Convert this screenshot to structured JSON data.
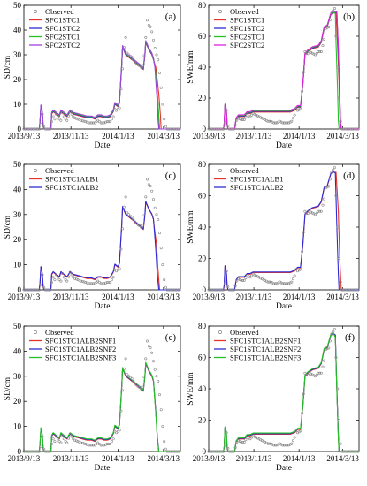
{
  "figure": {
    "x_ticks": [
      "2013/9/13",
      "2013/11/13",
      "2014/1/13",
      "2014/3/13"
    ],
    "x_tick_days": [
      0,
      61,
      122,
      181
    ],
    "x_range_days": [
      0,
      203
    ],
    "xlabel": "Date"
  },
  "chart_data": [
    {
      "type": "line",
      "panel": "(a)",
      "ylabel": "SD/cm",
      "ylim": [
        0,
        50
      ],
      "yticks": [
        0,
        10,
        20,
        30,
        40,
        50
      ],
      "legend_position": "top-left",
      "series": [
        {
          "name": "Observed",
          "color": "#888888",
          "marker": "circle"
        },
        {
          "name": "SFC1STC1",
          "color": "#e8332a"
        },
        {
          "name": "SFC1STC2",
          "color": "#2b2bd6"
        },
        {
          "name": "SFC2STC1",
          "color": "#22c322"
        },
        {
          "name": "SFC2STC2",
          "color": "#a040e0"
        }
      ]
    },
    {
      "type": "line",
      "panel": "(b)",
      "ylabel": "SWE/mm",
      "ylim": [
        0,
        80
      ],
      "yticks": [
        0,
        20,
        40,
        60,
        80
      ],
      "legend_position": "top-left",
      "series": [
        {
          "name": "Observed",
          "color": "#888888",
          "marker": "circle"
        },
        {
          "name": "SFC1STC1",
          "color": "#e8332a"
        },
        {
          "name": "SFC1STC2",
          "color": "#2b2bd6"
        },
        {
          "name": "SFC2STC1",
          "color": "#22c322"
        },
        {
          "name": "SFC2STC2",
          "color": "#e020e0"
        }
      ]
    },
    {
      "type": "line",
      "panel": "(c)",
      "ylabel": "SD/cm",
      "ylim": [
        0,
        50
      ],
      "yticks": [
        0,
        10,
        20,
        30,
        40,
        50
      ],
      "legend_position": "top-left",
      "series": [
        {
          "name": "Observed",
          "color": "#888888",
          "marker": "circle"
        },
        {
          "name": "SFC1STC1ALB1",
          "color": "#e8332a"
        },
        {
          "name": "SFC1STC1ALB2",
          "color": "#2b2bd6"
        }
      ]
    },
    {
      "type": "line",
      "panel": "(d)",
      "ylabel": "SWE/mm",
      "ylim": [
        0,
        80
      ],
      "yticks": [
        0,
        20,
        40,
        60,
        80
      ],
      "legend_position": "top-left",
      "series": [
        {
          "name": "Observed",
          "color": "#888888",
          "marker": "circle"
        },
        {
          "name": "SFC1STC1ALB1",
          "color": "#e8332a"
        },
        {
          "name": "SFC1STC1ALB2",
          "color": "#2b2bd6"
        }
      ]
    },
    {
      "type": "line",
      "panel": "(e)",
      "ylabel": "SD/cm",
      "ylim": [
        0,
        50
      ],
      "yticks": [
        0,
        10,
        20,
        30,
        40,
        50
      ],
      "legend_position": "top-left",
      "series": [
        {
          "name": "Observed",
          "color": "#888888",
          "marker": "circle"
        },
        {
          "name": "SFC1STC1ALB2SNF1",
          "color": "#e8332a"
        },
        {
          "name": "SFC1STC1ALB2SNF2",
          "color": "#2b2bd6"
        },
        {
          "name": "SFC1STC1ALB2SNF3",
          "color": "#22c322"
        }
      ]
    },
    {
      "type": "line",
      "panel": "(f)",
      "ylabel": "SWE/mm",
      "ylim": [
        0,
        80
      ],
      "yticks": [
        0,
        20,
        40,
        60,
        80
      ],
      "legend_position": "top-left",
      "series": [
        {
          "name": "Observed",
          "color": "#888888",
          "marker": "circle"
        },
        {
          "name": "SFC1STC1ALB2SNF1",
          "color": "#e8332a"
        },
        {
          "name": "SFC1STC1ALB2SNF2",
          "color": "#2b2bd6"
        },
        {
          "name": "SFC1STC1ALB2SNF3",
          "color": "#22c322"
        }
      ]
    }
  ],
  "curves": {
    "obs_sd": [
      [
        0,
        0
      ],
      [
        20,
        0
      ],
      [
        22,
        2
      ],
      [
        23,
        7
      ],
      [
        24,
        6
      ],
      [
        25,
        6
      ],
      [
        26,
        1
      ],
      [
        28,
        0
      ],
      [
        35,
        0
      ],
      [
        36,
        3
      ],
      [
        38,
        5
      ],
      [
        40,
        4
      ],
      [
        42,
        6
      ],
      [
        44,
        5
      ],
      [
        46,
        4
      ],
      [
        48,
        3.5
      ],
      [
        50,
        6.5
      ],
      [
        52,
        5
      ],
      [
        54,
        4
      ],
      [
        56,
        3.5
      ],
      [
        60,
        7
      ],
      [
        62,
        6
      ],
      [
        64,
        5
      ],
      [
        66,
        4.5
      ],
      [
        70,
        4
      ],
      [
        74,
        3.5
      ],
      [
        80,
        3
      ],
      [
        84,
        2.5
      ],
      [
        88,
        2.5
      ],
      [
        92,
        2.5
      ],
      [
        96,
        3.5
      ],
      [
        100,
        2.5
      ],
      [
        104,
        2.5
      ],
      [
        108,
        3
      ],
      [
        112,
        3
      ],
      [
        116,
        5
      ],
      [
        118,
        8
      ],
      [
        120,
        7.5
      ],
      [
        122,
        8
      ],
      [
        124,
        8.5
      ],
      [
        127,
        20
      ],
      [
        130,
        33
      ],
      [
        131,
        43
      ],
      [
        133,
        31
      ],
      [
        136,
        30
      ],
      [
        140,
        29
      ],
      [
        144,
        27
      ],
      [
        148,
        26
      ],
      [
        152,
        25
      ],
      [
        155,
        26
      ],
      [
        158,
        37
      ],
      [
        160,
        44
      ],
      [
        162,
        42
      ],
      [
        165,
        41
      ],
      [
        168,
        36
      ],
      [
        171,
        31
      ],
      [
        174,
        28
      ],
      [
        177,
        20
      ],
      [
        180,
        10
      ],
      [
        182,
        4
      ],
      [
        183,
        2
      ],
      [
        185,
        0
      ],
      [
        203,
        0
      ]
    ],
    "obs_swe": [
      [
        0,
        0
      ],
      [
        20,
        0
      ],
      [
        22,
        4
      ],
      [
        23,
        13
      ],
      [
        24,
        12
      ],
      [
        26,
        2
      ],
      [
        28,
        0
      ],
      [
        35,
        0
      ],
      [
        37,
        5
      ],
      [
        40,
        7
      ],
      [
        44,
        6
      ],
      [
        48,
        6
      ],
      [
        52,
        9
      ],
      [
        56,
        8
      ],
      [
        60,
        10
      ],
      [
        64,
        9
      ],
      [
        68,
        8
      ],
      [
        72,
        7
      ],
      [
        76,
        6
      ],
      [
        80,
        5
      ],
      [
        84,
        5
      ],
      [
        88,
        4
      ],
      [
        92,
        4
      ],
      [
        96,
        5
      ],
      [
        100,
        4
      ],
      [
        104,
        4
      ],
      [
        108,
        4
      ],
      [
        112,
        5
      ],
      [
        116,
        9
      ],
      [
        118,
        13
      ],
      [
        120,
        12
      ],
      [
        124,
        13
      ],
      [
        127,
        30
      ],
      [
        130,
        50
      ],
      [
        133,
        48
      ],
      [
        136,
        50
      ],
      [
        140,
        49
      ],
      [
        144,
        48
      ],
      [
        148,
        50
      ],
      [
        152,
        50
      ],
      [
        156,
        58
      ],
      [
        158,
        65
      ],
      [
        162,
        66
      ],
      [
        166,
        75
      ],
      [
        170,
        78
      ],
      [
        172,
        60
      ],
      [
        174,
        40
      ],
      [
        176,
        20
      ],
      [
        178,
        5
      ],
      [
        180,
        0
      ],
      [
        203,
        0
      ]
    ],
    "sim_sd": [
      [
        0,
        0
      ],
      [
        20,
        0
      ],
      [
        21,
        3
      ],
      [
        22,
        9
      ],
      [
        23,
        8
      ],
      [
        24,
        6
      ],
      [
        25,
        1
      ],
      [
        26,
        0
      ],
      [
        35,
        0
      ],
      [
        36,
        6
      ],
      [
        38,
        7
      ],
      [
        42,
        6
      ],
      [
        46,
        5
      ],
      [
        48,
        7
      ],
      [
        52,
        6
      ],
      [
        56,
        5
      ],
      [
        60,
        7
      ],
      [
        64,
        6
      ],
      [
        70,
        5.5
      ],
      [
        76,
        5
      ],
      [
        82,
        4.5
      ],
      [
        88,
        4.5
      ],
      [
        92,
        4
      ],
      [
        96,
        5
      ],
      [
        100,
        5
      ],
      [
        104,
        4.5
      ],
      [
        108,
        4.5
      ],
      [
        112,
        5
      ],
      [
        116,
        7
      ],
      [
        118,
        10
      ],
      [
        122,
        9
      ],
      [
        124,
        10.5
      ],
      [
        127,
        26
      ],
      [
        128,
        33
      ],
      [
        132,
        30
      ],
      [
        136,
        29
      ],
      [
        140,
        28
      ],
      [
        144,
        27
      ],
      [
        148,
        26
      ],
      [
        152,
        25
      ],
      [
        155,
        24
      ],
      [
        157,
        30
      ],
      [
        158,
        35
      ],
      [
        162,
        32
      ],
      [
        166,
        30
      ],
      [
        168,
        28
      ]
    ],
    "sim_swe": [
      [
        0,
        0
      ],
      [
        20,
        0
      ],
      [
        21,
        3
      ],
      [
        22,
        15
      ],
      [
        23,
        14
      ],
      [
        24,
        10
      ],
      [
        25,
        2
      ],
      [
        26,
        0
      ],
      [
        35,
        0
      ],
      [
        37,
        6
      ],
      [
        40,
        8
      ],
      [
        48,
        8
      ],
      [
        52,
        10
      ],
      [
        56,
        10
      ],
      [
        60,
        11
      ],
      [
        64,
        11
      ],
      [
        80,
        11
      ],
      [
        96,
        11
      ],
      [
        110,
        11
      ],
      [
        116,
        12
      ],
      [
        120,
        14
      ],
      [
        124,
        14
      ],
      [
        127,
        28
      ],
      [
        130,
        48
      ],
      [
        134,
        50
      ],
      [
        140,
        52
      ],
      [
        148,
        53
      ],
      [
        152,
        56
      ],
      [
        156,
        65
      ],
      [
        160,
        66
      ],
      [
        165,
        74
      ],
      [
        168,
        75
      ]
    ],
    "melt": {
      "0": {
        "sd": [
          [
            [
              171,
              25
            ],
            [
              173,
              20
            ],
            [
              175,
              14
            ],
            [
              177,
              6
            ],
            [
              178,
              0
            ]
          ],
          [
            [
              170,
              25
            ],
            [
              172,
              18
            ],
            [
              174,
              10
            ],
            [
              175,
              4
            ],
            [
              176,
              0
            ]
          ],
          [
            [
              170,
              25
            ],
            [
              172,
              18
            ],
            [
              174,
              10
            ],
            [
              175,
              4
            ],
            [
              176,
              0
            ]
          ],
          [
            [
              170,
              24
            ],
            [
              171,
              19
            ],
            [
              173,
              10
            ],
            [
              174,
              3
            ],
            [
              175,
              0
            ]
          ]
        ],
        "swe": [
          [
            [
              172,
              75
            ],
            [
              174,
              55
            ],
            [
              176,
              30
            ],
            [
              177,
              10
            ],
            [
              178,
              0
            ]
          ],
          [
            [
              173,
              75
            ],
            [
              175,
              50
            ],
            [
              177,
              20
            ],
            [
              178,
              5
            ],
            [
              179,
              0
            ]
          ],
          [
            [
              171,
              74
            ],
            [
              172,
              55
            ],
            [
              174,
              25
            ],
            [
              175,
              5
            ],
            [
              176,
              0
            ]
          ],
          [
            [
              173,
              75
            ],
            [
              175,
              52
            ],
            [
              177,
              22
            ],
            [
              178,
              4
            ],
            [
              179,
              0
            ]
          ]
        ]
      },
      "1": {
        "sd": [
          [
            [
              169,
              25
            ],
            [
              172,
              18
            ],
            [
              174,
              8
            ],
            [
              176,
              0
            ]
          ],
          [
            [
              169,
              24
            ],
            [
              171,
              16
            ],
            [
              173,
              6
            ],
            [
              175,
              0
            ]
          ]
        ],
        "swe": [
          [
            [
              172,
              75
            ],
            [
              175,
              50
            ],
            [
              177,
              20
            ],
            [
              179,
              0
            ]
          ],
          [
            [
              171,
              74
            ],
            [
              173,
              40
            ],
            [
              175,
              10
            ],
            [
              176,
              0
            ]
          ]
        ]
      },
      "2": {
        "sd": [
          [
            [
              169,
              24
            ],
            [
              171,
              16
            ],
            [
              173,
              6
            ],
            [
              175,
              0
            ]
          ],
          [
            [
              169,
              24
            ],
            [
              171,
              16
            ],
            [
              173,
              6
            ],
            [
              175,
              0
            ]
          ],
          [
            [
              169,
              23
            ],
            [
              171,
              15
            ],
            [
              173,
              5
            ],
            [
              175,
              0
            ]
          ]
        ],
        "swe": [
          [
            [
              171,
              74
            ],
            [
              173,
              40
            ],
            [
              175,
              10
            ],
            [
              176,
              0
            ]
          ],
          [
            [
              171,
              74
            ],
            [
              173,
              40
            ],
            [
              175,
              10
            ],
            [
              176,
              0
            ]
          ],
          [
            [
              171,
              72
            ],
            [
              173,
              38
            ],
            [
              175,
              8
            ],
            [
              176,
              0
            ]
          ]
        ]
      }
    }
  }
}
